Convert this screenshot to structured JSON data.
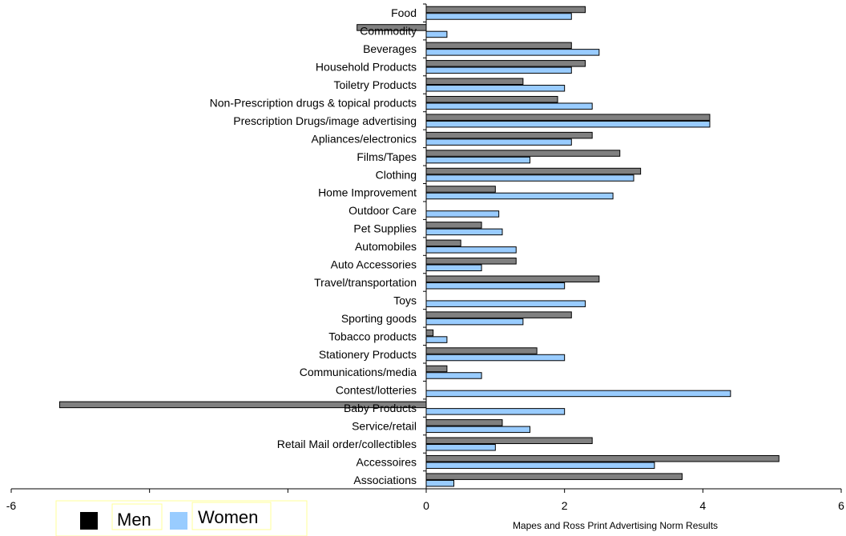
{
  "chart_data": {
    "type": "bar",
    "orientation": "horizontal",
    "title": "",
    "xlabel": "Mapes and Ross Print Advertising Norm Results",
    "ylabel": "",
    "xlim": [
      -6,
      6
    ],
    "xticks": [
      -6,
      -4,
      -2,
      0,
      2,
      4,
      6
    ],
    "grid": false,
    "legend_position": "bottom-left",
    "categories": [
      "Food",
      "Commodity",
      "Beverages",
      "Household Products",
      "Toiletry Products",
      "Non-Prescription drugs & topical products",
      "Prescription Drugs/image advertising",
      "Apliances/electronics",
      "Films/Tapes",
      "Clothing",
      "Home Improvement",
      "Outdoor Care",
      "Pet Supplies",
      "Automobiles",
      "Auto Accessories",
      "Travel/transportation",
      "Toys",
      "Sporting goods",
      "Tobacco products",
      "Stationery Products",
      "Communications/media",
      "Contest/lotteries",
      "Baby Products",
      "Service/retail",
      "Retail Mail order/collectibles",
      "Accessoires",
      "Associations"
    ],
    "series": [
      {
        "name": "Men",
        "color": "#808080",
        "values": [
          2.3,
          -1.0,
          2.1,
          2.3,
          1.4,
          1.9,
          4.1,
          2.4,
          2.8,
          3.1,
          1.0,
          0,
          0.8,
          0.5,
          1.3,
          2.5,
          0,
          2.1,
          0.1,
          1.6,
          0.3,
          0,
          -5.3,
          1.1,
          2.4,
          5.1,
          3.7
        ]
      },
      {
        "name": "Women",
        "color": "#99ccff",
        "values": [
          2.1,
          0.3,
          2.5,
          2.1,
          2.0,
          2.4,
          4.1,
          2.1,
          1.5,
          3.0,
          2.7,
          1.05,
          1.1,
          1.3,
          0.8,
          2.0,
          2.3,
          1.4,
          0.3,
          2.0,
          0.8,
          4.4,
          2.0,
          1.5,
          1.0,
          3.3,
          0.4
        ]
      }
    ],
    "legend": {
      "men_label": "Men",
      "women_label": "Women",
      "men_swatch_color": "#000000",
      "women_swatch_color": "#99ccff"
    }
  }
}
